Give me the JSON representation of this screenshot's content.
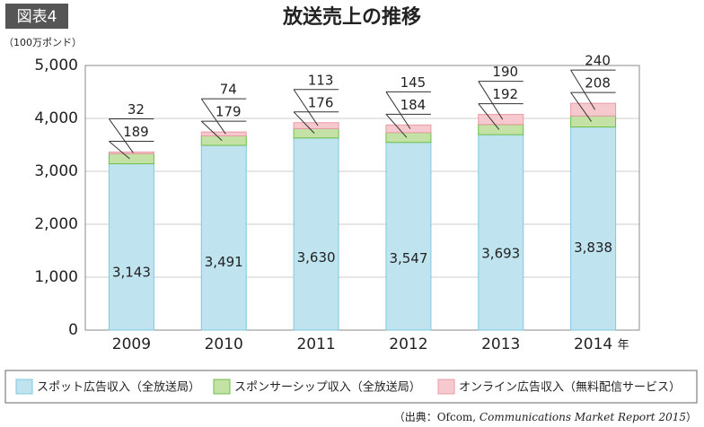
{
  "badge": "図表4",
  "chart_data": {
    "type": "bar",
    "stacked": true,
    "title": "放送売上の推移",
    "y_unit": "（100万ポンド）",
    "categories": [
      "2009",
      "2010",
      "2011",
      "2012",
      "2013",
      "2014"
    ],
    "x_unit": "年",
    "series": [
      {
        "name": "スポット広告収入（全放送局）",
        "color": "#bfe3ef",
        "border": "#7fc9df",
        "values": [
          3143,
          3491,
          3630,
          3547,
          3693,
          3838
        ],
        "value_labels": [
          "3,143",
          "3,491",
          "3,630",
          "3,547",
          "3,693",
          "3,838"
        ]
      },
      {
        "name": "スポンサーシップ収入（全放送局）",
        "color": "#c4e2a6",
        "border": "#6cbf4a",
        "values": [
          189,
          179,
          176,
          184,
          192,
          208
        ]
      },
      {
        "name": "オンライン広告収入（無料配信サービス）",
        "color": "#f5c9ce",
        "border": "#e89aa5",
        "values": [
          32,
          74,
          113,
          145,
          190,
          240
        ]
      }
    ],
    "ylim": [
      0,
      5000
    ],
    "yticks": [
      0,
      {
        "value": 1000,
        "label": "1,000"
      },
      {
        "value": 2000,
        "label": "2,000"
      },
      {
        "value": 3000,
        "label": "3,000"
      },
      {
        "value": 4000,
        "label": "4,000"
      },
      {
        "value": 5000,
        "label": "5,000"
      }
    ],
    "grid": true,
    "source": [
      "（出典：Ofcom, ",
      "Communications Market Report 2015",
      "）"
    ]
  }
}
